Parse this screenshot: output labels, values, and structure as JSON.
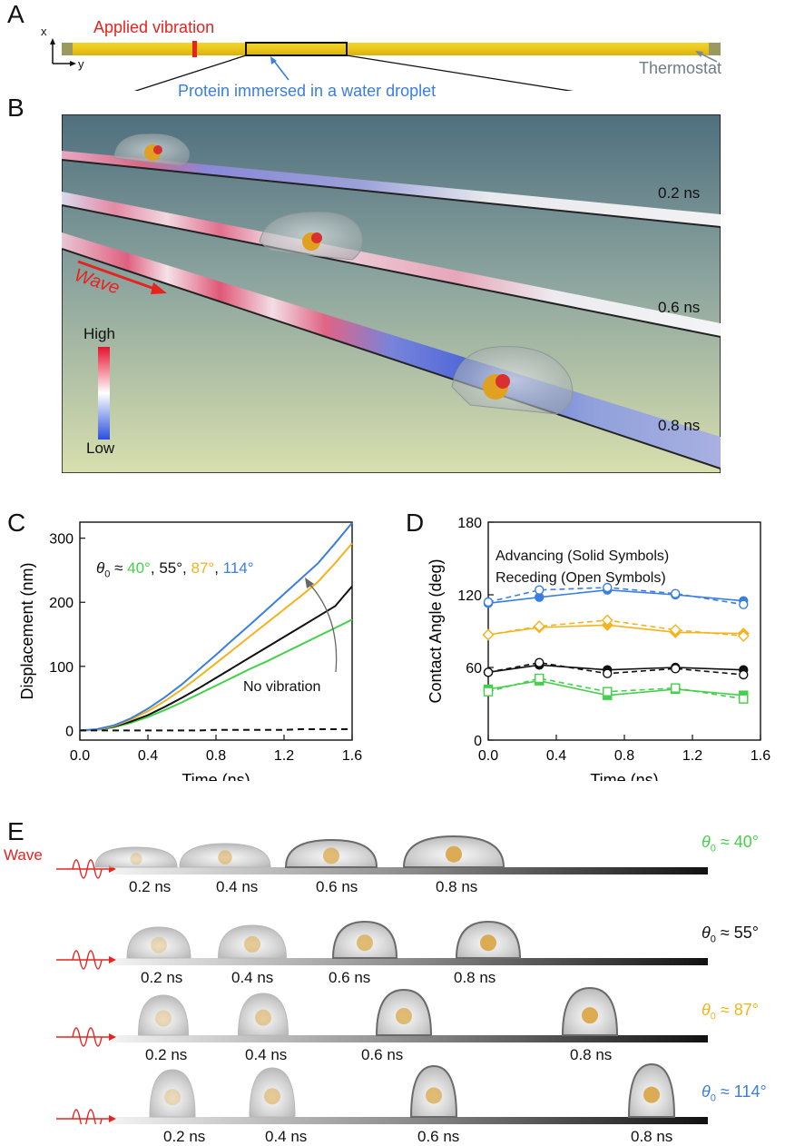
{
  "panels": {
    "A": {
      "letter": "A",
      "axis_x": "x",
      "axis_y": "y",
      "applied_vibration": "Applied vibration",
      "protein_label": "Protein immersed in a water droplet",
      "thermostat": "Thermostat"
    },
    "B": {
      "letter": "B",
      "times": [
        "0.2 ns",
        "0.6 ns",
        "0.8 ns"
      ],
      "wave": "Wave",
      "colorbar_high": "High",
      "colorbar_low": "Low"
    },
    "C": {
      "letter": "C",
      "theta_prefix": "θ",
      "theta_sub": "0",
      "theta_approx": " ≈ ",
      "angles": [
        "40°",
        "55°",
        "87°",
        "114°"
      ],
      "no_vibration": "No vibration"
    },
    "D": {
      "letter": "D",
      "legend_line1": "Advancing (Solid Symbols)",
      "legend_line2": "Receding (Open Symbols)"
    },
    "E": {
      "letter": "E",
      "wave": "Wave",
      "rows": [
        {
          "angle": "40°",
          "color": "#44d04a",
          "times": [
            "0.2 ns",
            "0.4 ns",
            "0.6 ns",
            "0.8 ns"
          ]
        },
        {
          "angle": "55°",
          "color": "#111111",
          "times": [
            "0.2 ns",
            "0.4 ns",
            "0.6 ns",
            "0.8 ns"
          ]
        },
        {
          "angle": "87°",
          "color": "#f4b31c",
          "times": [
            "0.2 ns",
            "0.4 ns",
            "0.6 ns",
            "0.8 ns"
          ]
        },
        {
          "angle": "114°",
          "color": "#3a7ee0",
          "times": [
            "0.2 ns",
            "0.4 ns",
            "0.6 ns",
            "0.8 ns"
          ]
        }
      ]
    }
  },
  "colors": {
    "green": "#44d04a",
    "black": "#111111",
    "orange": "#f4b31c",
    "blue": "#3a7ee0",
    "red": "#e8231f"
  },
  "chart_data": [
    {
      "type": "line",
      "xlabel": "Time (ns)",
      "ylabel": "Displacement (nm)",
      "xlim": [
        0.0,
        1.6
      ],
      "ylim": [
        -15,
        325
      ],
      "xticks": [
        "0.0",
        "0.4",
        "0.8",
        "1.2",
        "1.6"
      ],
      "yticks": [
        "0",
        "100",
        "200",
        "300"
      ],
      "x": [
        0.0,
        0.1,
        0.2,
        0.3,
        0.4,
        0.5,
        0.6,
        0.7,
        0.8,
        0.9,
        1.0,
        1.1,
        1.2,
        1.3,
        1.4,
        1.5,
        1.6
      ],
      "series": [
        {
          "color": "#44d04a",
          "values": [
            0,
            1,
            5,
            12,
            21,
            32,
            44,
            57,
            70,
            83,
            96,
            108,
            121,
            134,
            147,
            160,
            173
          ]
        },
        {
          "color": "#111111",
          "values": [
            0,
            1,
            6,
            14,
            24,
            37,
            51,
            66,
            82,
            98,
            114,
            130,
            146,
            162,
            178,
            194,
            225
          ]
        },
        {
          "color": "#f4b31c",
          "values": [
            0,
            1,
            7,
            17,
            30,
            46,
            64,
            84,
            105,
            126,
            147,
            168,
            189,
            210,
            232,
            261,
            292
          ]
        },
        {
          "color": "#3a7ee0",
          "values": [
            0,
            2,
            8,
            19,
            34,
            52,
            72,
            95,
            118,
            142,
            165,
            189,
            213,
            237,
            261,
            292,
            324
          ]
        },
        {
          "name": "No vibration",
          "color": "#111111",
          "dashed": true,
          "values": [
            0,
            0,
            0,
            0,
            0,
            0,
            0,
            0,
            1,
            1,
            1,
            1,
            1,
            2,
            2,
            2,
            2
          ]
        }
      ]
    },
    {
      "type": "line",
      "xlabel": "Time (ns)",
      "ylabel": "Contact Angle (deg)",
      "xlim": [
        0.0,
        1.6
      ],
      "ylim": [
        0,
        180
      ],
      "xticks": [
        "0.0",
        "0.4",
        "0.8",
        "1.2",
        "1.6"
      ],
      "yticks": [
        "0",
        "60",
        "120",
        "180"
      ],
      "x": [
        0.0,
        0.3,
        0.7,
        1.1,
        1.5
      ],
      "series": [
        {
          "color": "#3a7ee0",
          "marker": "circle",
          "kind": "advancing",
          "values": [
            113,
            118,
            124,
            120,
            115
          ]
        },
        {
          "color": "#3a7ee0",
          "marker": "circle",
          "kind": "receding",
          "values": [
            114,
            124,
            126,
            121,
            112
          ]
        },
        {
          "color": "#f4b31c",
          "marker": "diamond",
          "kind": "advancing",
          "values": [
            87,
            93,
            95,
            89,
            88
          ]
        },
        {
          "color": "#f4b31c",
          "marker": "diamond",
          "kind": "receding",
          "values": [
            87,
            94,
            99,
            91,
            86
          ]
        },
        {
          "color": "#111111",
          "marker": "circle",
          "kind": "advancing",
          "values": [
            56,
            62,
            58,
            60,
            58
          ]
        },
        {
          "color": "#111111",
          "marker": "circle",
          "kind": "receding",
          "values": [
            56,
            64,
            55,
            59,
            54
          ]
        },
        {
          "color": "#44d04a",
          "marker": "square",
          "kind": "advancing",
          "values": [
            42,
            49,
            37,
            42,
            37
          ]
        },
        {
          "color": "#44d04a",
          "marker": "square",
          "kind": "receding",
          "values": [
            40,
            51,
            40,
            43,
            34
          ]
        }
      ]
    }
  ]
}
